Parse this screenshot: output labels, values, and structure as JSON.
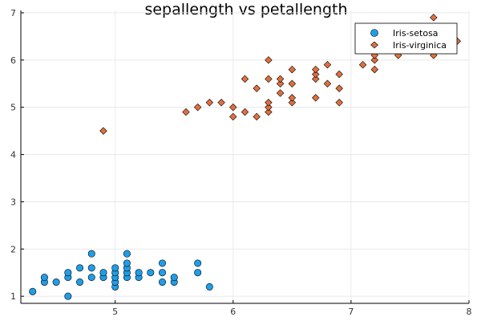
{
  "chart_data": {
    "type": "scatter",
    "title": "sepallength vs petallength",
    "xlabel": "",
    "ylabel": "",
    "xlim": [
      4.2,
      8.0
    ],
    "ylim": [
      0.85,
      7.05
    ],
    "xticks": [
      5,
      6,
      7,
      8
    ],
    "yticks": [
      1,
      2,
      3,
      4,
      5,
      6,
      7
    ],
    "grid": true,
    "legend_position": "top-right",
    "series": [
      {
        "name": "Iris-setosa",
        "marker": "circle",
        "color": "#1f9ee8",
        "points": [
          [
            4.3,
            1.1
          ],
          [
            4.4,
            1.3
          ],
          [
            4.4,
            1.4
          ],
          [
            4.5,
            1.3
          ],
          [
            4.6,
            1.0
          ],
          [
            4.6,
            1.4
          ],
          [
            4.6,
            1.5
          ],
          [
            4.7,
            1.3
          ],
          [
            4.7,
            1.6
          ],
          [
            4.8,
            1.4
          ],
          [
            4.8,
            1.6
          ],
          [
            4.8,
            1.9
          ],
          [
            4.9,
            1.4
          ],
          [
            4.9,
            1.5
          ],
          [
            5.0,
            1.2
          ],
          [
            5.0,
            1.3
          ],
          [
            5.0,
            1.4
          ],
          [
            5.0,
            1.5
          ],
          [
            5.0,
            1.6
          ],
          [
            5.1,
            1.4
          ],
          [
            5.1,
            1.5
          ],
          [
            5.1,
            1.6
          ],
          [
            5.1,
            1.7
          ],
          [
            5.1,
            1.9
          ],
          [
            5.2,
            1.4
          ],
          [
            5.2,
            1.5
          ],
          [
            5.3,
            1.5
          ],
          [
            5.4,
            1.3
          ],
          [
            5.4,
            1.5
          ],
          [
            5.4,
            1.7
          ],
          [
            5.5,
            1.3
          ],
          [
            5.5,
            1.4
          ],
          [
            5.7,
            1.5
          ],
          [
            5.7,
            1.7
          ],
          [
            5.8,
            1.2
          ]
        ]
      },
      {
        "name": "Iris-virginica",
        "marker": "diamond",
        "color": "#e0703f",
        "points": [
          [
            4.9,
            4.5
          ],
          [
            5.6,
            4.9
          ],
          [
            5.7,
            5.0
          ],
          [
            5.8,
            5.1
          ],
          [
            5.9,
            5.1
          ],
          [
            6.0,
            4.8
          ],
          [
            6.0,
            5.0
          ],
          [
            6.1,
            4.9
          ],
          [
            6.1,
            5.6
          ],
          [
            6.2,
            4.8
          ],
          [
            6.2,
            5.4
          ],
          [
            6.3,
            4.9
          ],
          [
            6.3,
            5.0
          ],
          [
            6.3,
            5.1
          ],
          [
            6.3,
            5.6
          ],
          [
            6.3,
            6.0
          ],
          [
            6.4,
            5.3
          ],
          [
            6.4,
            5.5
          ],
          [
            6.4,
            5.6
          ],
          [
            6.5,
            5.1
          ],
          [
            6.5,
            5.2
          ],
          [
            6.5,
            5.5
          ],
          [
            6.5,
            5.8
          ],
          [
            6.7,
            5.2
          ],
          [
            6.7,
            5.6
          ],
          [
            6.7,
            5.7
          ],
          [
            6.7,
            5.8
          ],
          [
            6.8,
            5.5
          ],
          [
            6.8,
            5.9
          ],
          [
            6.9,
            5.1
          ],
          [
            6.9,
            5.4
          ],
          [
            6.9,
            5.7
          ],
          [
            7.1,
            5.9
          ],
          [
            7.2,
            5.8
          ],
          [
            7.2,
            6.0
          ],
          [
            7.2,
            6.1
          ],
          [
            7.4,
            6.1
          ],
          [
            7.7,
            6.1
          ],
          [
            7.7,
            6.7
          ],
          [
            7.7,
            6.9
          ],
          [
            7.9,
            6.4
          ]
        ]
      }
    ]
  }
}
